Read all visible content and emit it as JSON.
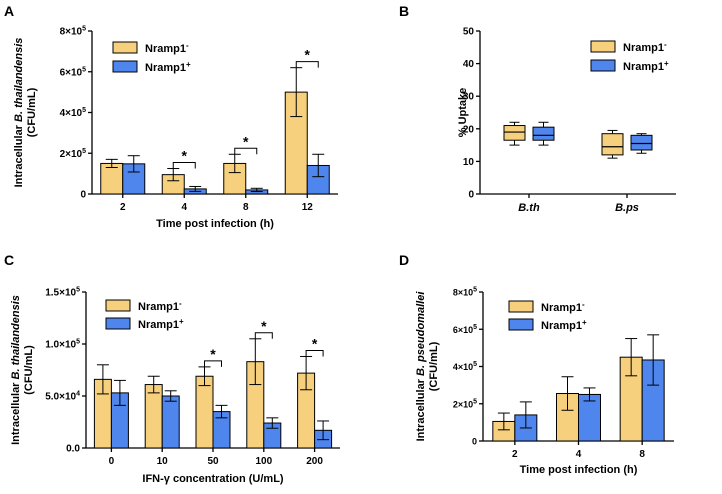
{
  "colors": {
    "nramp_minus": "#f6d07c",
    "nramp_plus": "#4f86ee"
  },
  "chart_data": [
    {
      "panel": "A",
      "type": "bar",
      "ylabel_line1_prefix": "Intracellular ",
      "ylabel_line1_species": "B. thailandensis",
      "ylabel_line2": "(CFU/mL)",
      "xlabel": "Time post infection (h)",
      "categories": [
        "2",
        "4",
        "8",
        "12"
      ],
      "ylim": [
        0,
        800000
      ],
      "yticks": [
        {
          "value": 0,
          "label": "0"
        },
        {
          "value": 200000,
          "label": "2×10",
          "sup": "5"
        },
        {
          "value": 400000,
          "label": "4×10",
          "sup": "5"
        },
        {
          "value": 600000,
          "label": "6×10",
          "sup": "5"
        },
        {
          "value": 800000,
          "label": "8×10",
          "sup": "5"
        }
      ],
      "legend": [
        "Nramp1",
        "Nramp1"
      ],
      "legend_sup": [
        "-",
        "+"
      ],
      "series": [
        {
          "name": "Nramp1-",
          "values": [
            150000,
            95000,
            150000,
            500000
          ],
          "errors": [
            20000,
            30000,
            45000,
            120000
          ]
        },
        {
          "name": "Nramp1+",
          "values": [
            148000,
            25000,
            20000,
            140000
          ],
          "errors": [
            40000,
            12000,
            8000,
            55000
          ]
        }
      ],
      "significance": [
        {
          "category_index": 1,
          "label": "*"
        },
        {
          "category_index": 2,
          "label": "*"
        },
        {
          "category_index": 3,
          "label": "*"
        }
      ]
    },
    {
      "panel": "B",
      "type": "box",
      "ylabel": "% Uptake",
      "categories": [
        "B.th",
        "B.ps"
      ],
      "ylim": [
        0,
        50
      ],
      "yticks": [
        {
          "value": 0,
          "label": "0"
        },
        {
          "value": 10,
          "label": "10"
        },
        {
          "value": 20,
          "label": "20"
        },
        {
          "value": 30,
          "label": "30"
        },
        {
          "value": 40,
          "label": "40"
        },
        {
          "value": 50,
          "label": "50"
        }
      ],
      "legend": [
        "Nramp1",
        "Nramp1"
      ],
      "legend_sup": [
        "-",
        "+"
      ],
      "series": [
        {
          "name": "Nramp1-",
          "boxes": [
            {
              "min": 15,
              "q1": 16.5,
              "median": 19,
              "q3": 21,
              "max": 22
            },
            {
              "min": 11,
              "q1": 12,
              "median": 14.5,
              "q3": 18.5,
              "max": 19.5
            }
          ]
        },
        {
          "name": "Nramp1+",
          "boxes": [
            {
              "min": 15,
              "q1": 16.5,
              "median": 18,
              "q3": 20.5,
              "max": 22
            },
            {
              "min": 12.5,
              "q1": 13.5,
              "median": 15.5,
              "q3": 18,
              "max": 18.5
            }
          ]
        }
      ]
    },
    {
      "panel": "C",
      "type": "bar",
      "ylabel_line1_prefix": "Intracellular ",
      "ylabel_line1_species": "B. thailandensis",
      "ylabel_line2": "(CFU/mL)",
      "xlabel": "IFN-γ concentration (U/mL)",
      "categories": [
        "0",
        "10",
        "50",
        "100",
        "200"
      ],
      "ylim": [
        0,
        150000
      ],
      "yticks": [
        {
          "value": 0,
          "label": "0.0"
        },
        {
          "value": 50000,
          "label": "5.0×10",
          "sup": "4"
        },
        {
          "value": 100000,
          "label": "1.0×10",
          "sup": "5"
        },
        {
          "value": 150000,
          "label": "1.5×10",
          "sup": "5"
        }
      ],
      "legend": [
        "Nramp1",
        "Nramp1"
      ],
      "legend_sup": [
        "-",
        "+"
      ],
      "series": [
        {
          "name": "Nramp1-",
          "values": [
            66000,
            61000,
            69000,
            83000,
            72000
          ],
          "errors": [
            14000,
            8000,
            9000,
            22000,
            16000
          ]
        },
        {
          "name": "Nramp1+",
          "values": [
            53000,
            50000,
            35000,
            24000,
            17000
          ],
          "errors": [
            12000,
            5000,
            6000,
            5000,
            9000
          ]
        }
      ],
      "significance": [
        {
          "category_index": 2,
          "label": "*"
        },
        {
          "category_index": 3,
          "label": "*"
        },
        {
          "category_index": 4,
          "label": "*"
        }
      ]
    },
    {
      "panel": "D",
      "type": "bar",
      "ylabel_line1_prefix": "Intracellular ",
      "ylabel_line1_species": "B. pseudomallei",
      "ylabel_line2": "(CFU/mL)",
      "xlabel": "Time post infection (h)",
      "categories": [
        "2",
        "4",
        "8"
      ],
      "ylim": [
        0,
        800000
      ],
      "yticks": [
        {
          "value": 0,
          "label": "0"
        },
        {
          "value": 200000,
          "label": "2×10",
          "sup": "5"
        },
        {
          "value": 400000,
          "label": "4×10",
          "sup": "5"
        },
        {
          "value": 600000,
          "label": "6×10",
          "sup": "5"
        },
        {
          "value": 800000,
          "label": "8×10",
          "sup": "5"
        }
      ],
      "legend": [
        "Nramp1",
        "Nramp1"
      ],
      "legend_sup": [
        "-",
        "+"
      ],
      "series": [
        {
          "name": "Nramp1-",
          "values": [
            105000,
            255000,
            450000
          ],
          "errors": [
            45000,
            90000,
            100000
          ]
        },
        {
          "name": "Nramp1+",
          "values": [
            140000,
            250000,
            435000
          ],
          "errors": [
            70000,
            35000,
            135000
          ]
        }
      ],
      "significance": []
    }
  ]
}
